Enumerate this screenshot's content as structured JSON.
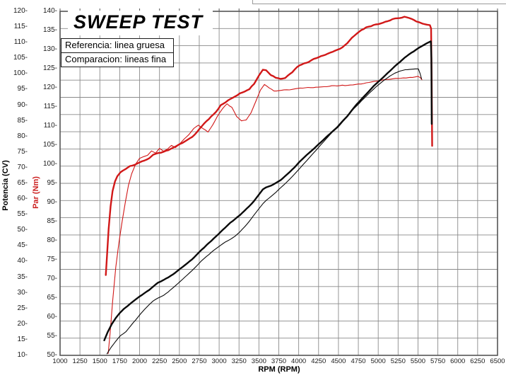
{
  "window": {
    "top_cropped_box": "partially-visible-empty-box"
  },
  "legend": {
    "reference": "Referencia: linea gruesa",
    "comparison": "Comparacion: lineas fina"
  },
  "chart_data": {
    "type": "line",
    "title": "SWEEP TEST",
    "xlabel": "RPM (RPM)",
    "legend_position": "top-left",
    "grid": true,
    "x_axis": {
      "min": 1000,
      "max": 6500,
      "tick_step": 250,
      "ticks": [
        1000,
        1250,
        1500,
        1750,
        2000,
        2250,
        2500,
        2750,
        3000,
        3250,
        3500,
        3750,
        4000,
        4250,
        4500,
        4750,
        5000,
        5250,
        5500,
        5750,
        6000,
        6250,
        6500
      ]
    },
    "y_axis_power": {
      "label": "Potencia (CV)",
      "color": "#000000",
      "min": 10,
      "max": 120,
      "tick_step": 5,
      "ticks": [
        10,
        15,
        20,
        25,
        30,
        35,
        40,
        45,
        50,
        55,
        60,
        65,
        70,
        75,
        80,
        85,
        90,
        95,
        100,
        105,
        110,
        115,
        120
      ]
    },
    "y_axis_torque": {
      "label": "Par (Nm)",
      "color": "#cc2222",
      "min": 50,
      "max": 140,
      "tick_step": 5,
      "ticks": [
        50,
        55,
        60,
        65,
        70,
        75,
        80,
        85,
        90,
        95,
        100,
        105,
        110,
        115,
        120,
        125,
        130,
        135,
        140
      ]
    },
    "grid_layout": {
      "horizontal_divisions": 20,
      "vertical_step_rpm": 250
    },
    "series": [
      {
        "name": "par-comparacion",
        "label": "Par comparacion (linea fina)",
        "axis": "torque",
        "color": "#d11818",
        "style": "thin",
        "width": 1.1,
        "noise": 0.8,
        "points": [
          [
            1605,
            50.5
          ],
          [
            1630,
            56
          ],
          [
            1660,
            64
          ],
          [
            1700,
            73
          ],
          [
            1740,
            79.5
          ],
          [
            1780,
            85
          ],
          [
            1820,
            90
          ],
          [
            1860,
            94.5
          ],
          [
            1900,
            97.5
          ],
          [
            1950,
            100
          ],
          [
            2000,
            101.5
          ],
          [
            2050,
            102
          ],
          [
            2100,
            102.3
          ],
          [
            2150,
            103.5
          ],
          [
            2200,
            103
          ],
          [
            2250,
            104.2
          ],
          [
            2300,
            103.4
          ],
          [
            2350,
            104
          ],
          [
            2400,
            105
          ],
          [
            2450,
            104.4
          ],
          [
            2500,
            105.2
          ],
          [
            2560,
            106.5
          ],
          [
            2620,
            107.8
          ],
          [
            2680,
            109.3
          ],
          [
            2740,
            110.2
          ],
          [
            2800,
            109.3
          ],
          [
            2860,
            108.4
          ],
          [
            2920,
            110.3
          ],
          [
            2980,
            112.6
          ],
          [
            3040,
            114.5
          ],
          [
            3100,
            115.8
          ],
          [
            3160,
            114.9
          ],
          [
            3220,
            112.5
          ],
          [
            3280,
            111.4
          ],
          [
            3340,
            111.6
          ],
          [
            3400,
            113.4
          ],
          [
            3460,
            116.4
          ],
          [
            3520,
            119.4
          ],
          [
            3570,
            120.9
          ],
          [
            3630,
            120
          ],
          [
            3690,
            119.2
          ],
          [
            3750,
            119.3
          ],
          [
            3850,
            119.5
          ],
          [
            3950,
            119.7
          ],
          [
            4050,
            119.9
          ],
          [
            4150,
            120.1
          ],
          [
            4250,
            120.2
          ],
          [
            4350,
            120.4
          ],
          [
            4450,
            120.5
          ],
          [
            4550,
            120.6
          ],
          [
            4650,
            120.7
          ],
          [
            4750,
            120.9
          ],
          [
            4850,
            121.2
          ],
          [
            4950,
            121.6
          ],
          [
            5050,
            122
          ],
          [
            5150,
            122.3
          ],
          [
            5250,
            122.5
          ],
          [
            5350,
            122.6
          ],
          [
            5430,
            122.7
          ],
          [
            5500,
            123
          ],
          [
            5530,
            122.6
          ],
          [
            5550,
            122.1
          ]
        ]
      },
      {
        "name": "potencia-comparacion",
        "label": "Potencia comparacion (linea fina)",
        "axis": "power",
        "color": "#0a0a0a",
        "style": "thin",
        "width": 1.1,
        "noise": 0.35,
        "points": [
          [
            1590,
            10.5
          ],
          [
            1640,
            12.5
          ],
          [
            1700,
            14.5
          ],
          [
            1760,
            16.3
          ],
          [
            1830,
            17.6
          ],
          [
            1890,
            19.5
          ],
          [
            1950,
            21.3
          ],
          [
            2010,
            23.2
          ],
          [
            2060,
            24.6
          ],
          [
            2120,
            26.2
          ],
          [
            2170,
            27.4
          ],
          [
            2230,
            28.3
          ],
          [
            2300,
            29.2
          ],
          [
            2360,
            30.3
          ],
          [
            2420,
            31.6
          ],
          [
            2480,
            32.9
          ],
          [
            2540,
            34.3
          ],
          [
            2600,
            35.7
          ],
          [
            2660,
            37.2
          ],
          [
            2720,
            38.7
          ],
          [
            2780,
            40.2
          ],
          [
            2840,
            41.6
          ],
          [
            2900,
            42.9
          ],
          [
            2960,
            44.1
          ],
          [
            3020,
            45.3
          ],
          [
            3080,
            46.3
          ],
          [
            3140,
            47.1
          ],
          [
            3200,
            48.1
          ],
          [
            3260,
            49.5
          ],
          [
            3320,
            51.1
          ],
          [
            3380,
            52.9
          ],
          [
            3440,
            54.9
          ],
          [
            3500,
            56.9
          ],
          [
            3550,
            58.5
          ],
          [
            3590,
            59.5
          ],
          [
            3650,
            60.8
          ],
          [
            3710,
            62.1
          ],
          [
            3770,
            63.5
          ],
          [
            3830,
            64.9
          ],
          [
            3890,
            66.4
          ],
          [
            3950,
            68
          ],
          [
            4010,
            69.7
          ],
          [
            4070,
            71.4
          ],
          [
            4130,
            73.1
          ],
          [
            4190,
            74.8
          ],
          [
            4250,
            76.5
          ],
          [
            4310,
            78.2
          ],
          [
            4370,
            79.9
          ],
          [
            4430,
            81.6
          ],
          [
            4490,
            83.3
          ],
          [
            4550,
            85
          ],
          [
            4610,
            86.6
          ],
          [
            4670,
            88.2
          ],
          [
            4730,
            89.8
          ],
          [
            4790,
            91.4
          ],
          [
            4850,
            92.9
          ],
          [
            4910,
            94.4
          ],
          [
            4970,
            95.8
          ],
          [
            5030,
            97.1
          ],
          [
            5090,
            98.3
          ],
          [
            5150,
            99.4
          ],
          [
            5210,
            100.3
          ],
          [
            5270,
            100.9
          ],
          [
            5340,
            101.3
          ],
          [
            5420,
            101.5
          ],
          [
            5470,
            101.6
          ],
          [
            5505,
            101.6
          ],
          [
            5525,
            100.2
          ],
          [
            5545,
            98.4
          ]
        ]
      },
      {
        "name": "par-referencia",
        "label": "Par referencia (linea gruesa)",
        "axis": "torque",
        "color": "#d11818",
        "style": "thick",
        "width": 2.4,
        "noise": 1.0,
        "points": [
          [
            1575,
            71
          ],
          [
            1590,
            76
          ],
          [
            1610,
            83
          ],
          [
            1635,
            89
          ],
          [
            1660,
            93
          ],
          [
            1690,
            95.5
          ],
          [
            1720,
            97
          ],
          [
            1760,
            98
          ],
          [
            1820,
            98.6
          ],
          [
            1880,
            99.4
          ],
          [
            1940,
            100
          ],
          [
            2000,
            100.5
          ],
          [
            2060,
            101
          ],
          [
            2120,
            101.6
          ],
          [
            2170,
            102.5
          ],
          [
            2230,
            103
          ],
          [
            2300,
            103.2
          ],
          [
            2360,
            103.8
          ],
          [
            2420,
            104.3
          ],
          [
            2480,
            105
          ],
          [
            2540,
            105.6
          ],
          [
            2600,
            106.3
          ],
          [
            2660,
            107.2
          ],
          [
            2720,
            108.4
          ],
          [
            2780,
            110
          ],
          [
            2840,
            111.3
          ],
          [
            2900,
            112.5
          ],
          [
            2960,
            113.7
          ],
          [
            3020,
            115.3
          ],
          [
            3080,
            116.3
          ],
          [
            3140,
            117
          ],
          [
            3200,
            117.8
          ],
          [
            3260,
            118.4
          ],
          [
            3320,
            118.9
          ],
          [
            3380,
            119.6
          ],
          [
            3440,
            121
          ],
          [
            3500,
            123.2
          ],
          [
            3550,
            124.8
          ],
          [
            3590,
            124.6
          ],
          [
            3650,
            123.4
          ],
          [
            3710,
            122.7
          ],
          [
            3770,
            122.3
          ],
          [
            3830,
            122.6
          ],
          [
            3890,
            123.6
          ],
          [
            3950,
            124.8
          ],
          [
            4010,
            125.8
          ],
          [
            4070,
            126.3
          ],
          [
            4130,
            126.9
          ],
          [
            4190,
            127.4
          ],
          [
            4250,
            128
          ],
          [
            4310,
            128.5
          ],
          [
            4370,
            129
          ],
          [
            4430,
            129.4
          ],
          [
            4490,
            129.9
          ],
          [
            4550,
            130.5
          ],
          [
            4610,
            131.5
          ],
          [
            4670,
            133
          ],
          [
            4730,
            134.3
          ],
          [
            4790,
            135.2
          ],
          [
            4850,
            135.8
          ],
          [
            4910,
            136.2
          ],
          [
            4970,
            136.6
          ],
          [
            5030,
            136.9
          ],
          [
            5090,
            137.2
          ],
          [
            5150,
            137.6
          ],
          [
            5210,
            138
          ],
          [
            5270,
            138.3
          ],
          [
            5330,
            138.5
          ],
          [
            5390,
            138.2
          ],
          [
            5450,
            137.7
          ],
          [
            5510,
            137.2
          ],
          [
            5560,
            136.8
          ],
          [
            5610,
            136.6
          ],
          [
            5650,
            136.4
          ],
          [
            5665,
            135.5
          ],
          [
            5672,
            122
          ],
          [
            5678,
            104.8
          ]
        ]
      },
      {
        "name": "potencia-referencia",
        "label": "Potencia referencia (linea gruesa)",
        "axis": "power",
        "color": "#0a0a0a",
        "style": "thick",
        "width": 2.4,
        "noise": 0.45,
        "points": [
          [
            1555,
            14.8
          ],
          [
            1600,
            17.5
          ],
          [
            1650,
            20
          ],
          [
            1700,
            22
          ],
          [
            1750,
            23.5
          ],
          [
            1800,
            24.8
          ],
          [
            1850,
            25.8
          ],
          [
            1900,
            26.8
          ],
          [
            1950,
            27.8
          ],
          [
            2000,
            28.8
          ],
          [
            2060,
            29.8
          ],
          [
            2120,
            30.9
          ],
          [
            2170,
            32
          ],
          [
            2230,
            33.2
          ],
          [
            2300,
            34
          ],
          [
            2360,
            34.9
          ],
          [
            2420,
            35.9
          ],
          [
            2480,
            37.1
          ],
          [
            2540,
            38.2
          ],
          [
            2600,
            39.4
          ],
          [
            2660,
            40.7
          ],
          [
            2720,
            42.2
          ],
          [
            2780,
            43.8
          ],
          [
            2840,
            45.2
          ],
          [
            2900,
            46.5
          ],
          [
            2960,
            48
          ],
          [
            3020,
            49.5
          ],
          [
            3080,
            51
          ],
          [
            3140,
            52.3
          ],
          [
            3200,
            53.6
          ],
          [
            3260,
            54.9
          ],
          [
            3320,
            56.2
          ],
          [
            3380,
            57.7
          ],
          [
            3440,
            59.4
          ],
          [
            3500,
            61.4
          ],
          [
            3550,
            63.1
          ],
          [
            3590,
            63.7
          ],
          [
            3650,
            64.2
          ],
          [
            3710,
            65
          ],
          [
            3770,
            66
          ],
          [
            3830,
            67.3
          ],
          [
            3890,
            68.7
          ],
          [
            3950,
            70.2
          ],
          [
            4010,
            71.9
          ],
          [
            4070,
            73.3
          ],
          [
            4130,
            74.7
          ],
          [
            4190,
            76.1
          ],
          [
            4250,
            77.5
          ],
          [
            4310,
            78.9
          ],
          [
            4370,
            80.3
          ],
          [
            4430,
            81.7
          ],
          [
            4490,
            83.1
          ],
          [
            4550,
            84.7
          ],
          [
            4610,
            86.4
          ],
          [
            4670,
            88.4
          ],
          [
            4730,
            90.3
          ],
          [
            4790,
            92
          ],
          [
            4850,
            93.6
          ],
          [
            4910,
            95.2
          ],
          [
            4970,
            96.7
          ],
          [
            5030,
            98.1
          ],
          [
            5090,
            99.6
          ],
          [
            5150,
            101
          ],
          [
            5210,
            102.4
          ],
          [
            5270,
            103.8
          ],
          [
            5330,
            105.2
          ],
          [
            5390,
            106.3
          ],
          [
            5450,
            107.3
          ],
          [
            5510,
            108.3
          ],
          [
            5560,
            109.1
          ],
          [
            5610,
            109.8
          ],
          [
            5650,
            110.3
          ],
          [
            5662,
            110.4
          ],
          [
            5668,
            105
          ],
          [
            5673,
            84
          ]
        ]
      }
    ]
  }
}
